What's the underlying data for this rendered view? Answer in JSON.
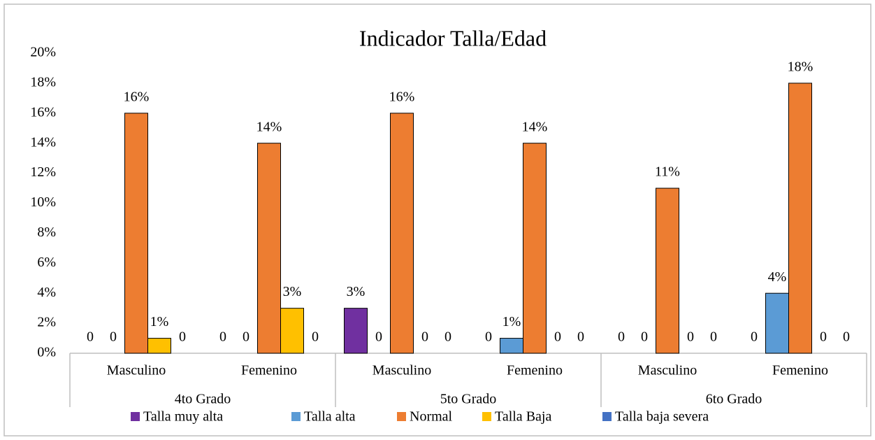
{
  "chart_data": {
    "type": "bar",
    "title": "Indicador Talla/Edad",
    "groups": [
      {
        "name": "4to Grado",
        "categories": [
          "Masculino",
          "Femenino"
        ]
      },
      {
        "name": "5to Grado",
        "categories": [
          "Masculino",
          "Femenino"
        ]
      },
      {
        "name": "6to Grado",
        "categories": [
          "Masculino",
          "Femenino"
        ]
      }
    ],
    "series": [
      {
        "name": "Talla muy alta",
        "color": "#7030a0",
        "values": [
          0,
          0,
          3,
          0,
          0,
          0
        ],
        "value_labels": [
          "0",
          "0",
          "3%",
          "0",
          "0",
          "0"
        ]
      },
      {
        "name": "Talla alta",
        "color": "#5b9bd5",
        "values": [
          0,
          0,
          0,
          1,
          0,
          4
        ],
        "value_labels": [
          "0",
          "0",
          "0",
          "1%",
          "0",
          "4%"
        ]
      },
      {
        "name": "Normal",
        "color": "#ed7d31",
        "values": [
          16,
          14,
          16,
          14,
          11,
          18
        ],
        "value_labels": [
          "16%",
          "14%",
          "16%",
          "14%",
          "11%",
          "18%"
        ]
      },
      {
        "name": "Talla Baja",
        "color": "#ffc000",
        "values": [
          1,
          3,
          0,
          0,
          0,
          0
        ],
        "value_labels": [
          "1%",
          "3%",
          "0",
          "0",
          "0",
          "0"
        ]
      },
      {
        "name": "Talla baja severa",
        "color": "#4472c4",
        "values": [
          0,
          0,
          0,
          0,
          0,
          0
        ],
        "value_labels": [
          "0",
          "0",
          "0",
          "0",
          "0",
          "0"
        ]
      }
    ],
    "ylim": [
      0,
      20
    ],
    "yticks": [
      {
        "value": 0,
        "label": "0%"
      },
      {
        "value": 2,
        "label": "2%"
      },
      {
        "value": 4,
        "label": "4%"
      },
      {
        "value": 6,
        "label": "6%"
      },
      {
        "value": 8,
        "label": "8%"
      },
      {
        "value": 10,
        "label": "10%"
      },
      {
        "value": 12,
        "label": "12%"
      },
      {
        "value": 14,
        "label": "14%"
      },
      {
        "value": 16,
        "label": "16%"
      },
      {
        "value": 18,
        "label": "18%"
      },
      {
        "value": 20,
        "label": "20%"
      }
    ],
    "grid": false,
    "legend": "bottom"
  }
}
